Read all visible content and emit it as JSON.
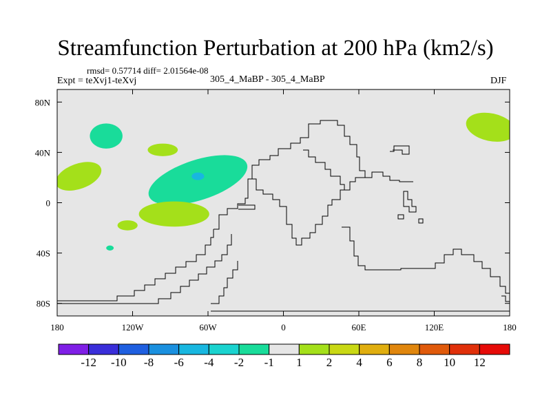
{
  "chart_data": {
    "type": "map-contour",
    "title": "Streamfunction Perturbation at 200 hPa (km2/s)",
    "stats_text": "rmsd= 0.57714 diff= 2.01564e-08",
    "left_label": "Expt = teXvj1-teXvj",
    "center_label": "305_4_MaBP - 305_4_MaBP",
    "right_label": "DJF",
    "xlim": [
      -180,
      180
    ],
    "ylim": [
      -90,
      90
    ],
    "x_ticks": [
      {
        "value": -180,
        "label": "180"
      },
      {
        "value": -120,
        "label": "120W"
      },
      {
        "value": -60,
        "label": "60W"
      },
      {
        "value": 0,
        "label": "0"
      },
      {
        "value": 60,
        "label": "60E"
      },
      {
        "value": 120,
        "label": "120E"
      },
      {
        "value": 180,
        "label": "180"
      }
    ],
    "y_ticks": [
      {
        "value": 80,
        "label": "80N"
      },
      {
        "value": 40,
        "label": "40N"
      },
      {
        "value": 0,
        "label": "0"
      },
      {
        "value": -40,
        "label": "40S"
      },
      {
        "value": -80,
        "label": "80S"
      }
    ],
    "colorbar": {
      "colors": [
        "#7f1fe6",
        "#3a2ed9",
        "#1f5fe0",
        "#1a90df",
        "#18b7e0",
        "#1ad3cf",
        "#19dc9a",
        "#e6e6e6",
        "#a4e01a",
        "#c9d814",
        "#e0ae0f",
        "#e0860d",
        "#e05a0b",
        "#e0300a",
        "#e60b08"
      ],
      "labels": [
        "-12",
        "-10",
        "-8",
        "-6",
        "-4",
        "-2",
        "-1",
        "1",
        "2",
        "4",
        "6",
        "8",
        "10",
        "12"
      ]
    },
    "anomalies": [
      {
        "level": "-2..-1",
        "color": "#19dc9a",
        "lon": -141,
        "lat": 53,
        "lon_radius": 13,
        "lat_radius": 10
      },
      {
        "level": "-2..-1",
        "color": "#19dc9a",
        "lon": -68,
        "lat": 18,
        "lon_radius": 41,
        "lat_radius": 16
      },
      {
        "level": "-4..-2",
        "color": "#18b7e0",
        "lon": -68,
        "lat": 21,
        "lon_radius": 5,
        "lat_radius": 3
      },
      {
        "level": "-2..-1",
        "color": "#19dc9a",
        "lon": -138,
        "lat": -36,
        "lon_radius": 3,
        "lat_radius": 2
      },
      {
        "level": "1..2",
        "color": "#a4e01a",
        "lon": -96,
        "lat": 42,
        "lon_radius": 12,
        "lat_radius": 5
      },
      {
        "level": "1..2",
        "color": "#a4e01a",
        "lon": -163,
        "lat": 21,
        "lon_radius": 19,
        "lat_radius": 10
      },
      {
        "level": "1..2",
        "color": "#a4e01a",
        "lon": -87,
        "lat": -9,
        "lon_radius": 28,
        "lat_radius": 10
      },
      {
        "level": "1..2",
        "color": "#a4e01a",
        "lon": -124,
        "lat": -18,
        "lon_radius": 8,
        "lat_radius": 4
      },
      {
        "level": "1..2",
        "color": "#a4e01a",
        "lon": 165,
        "lat": 60,
        "lon_radius": 20,
        "lat_radius": 11
      }
    ]
  }
}
